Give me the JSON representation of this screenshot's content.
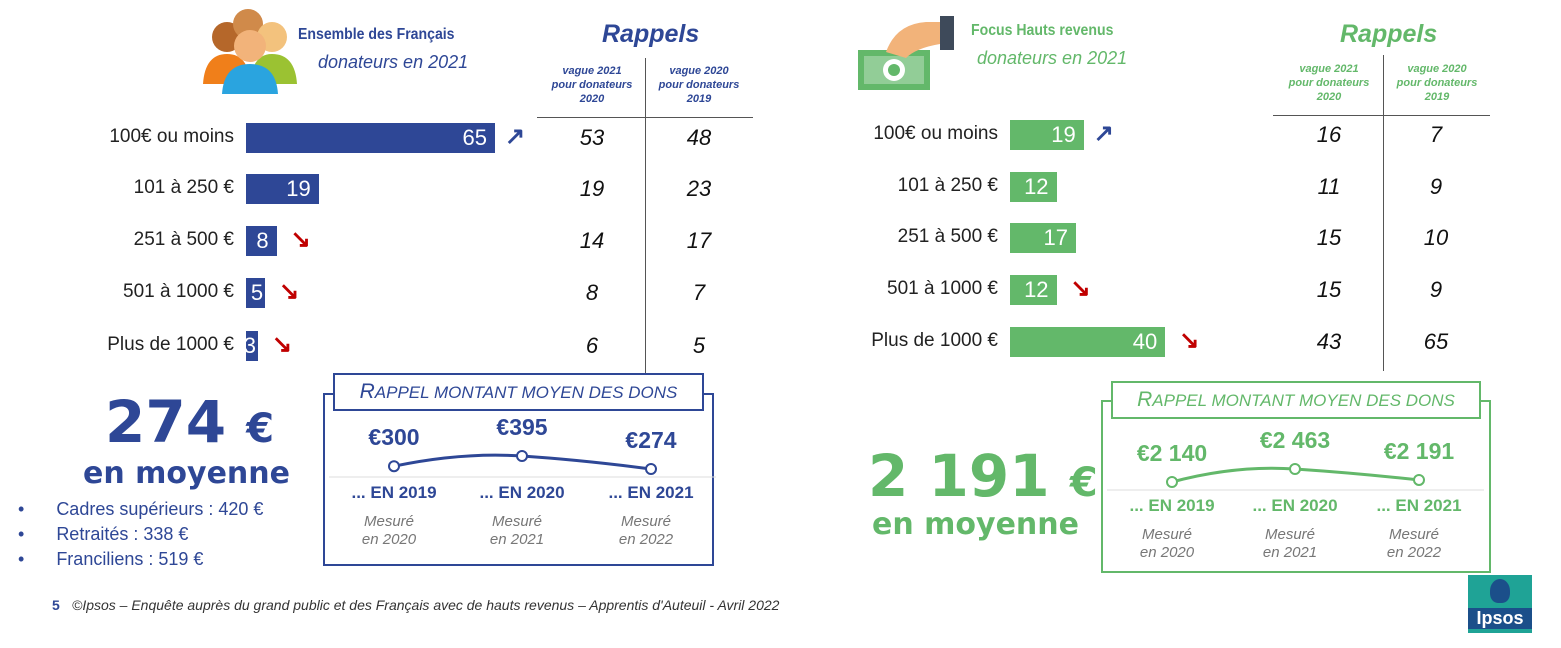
{
  "left": {
    "title": "Ensemble des Français",
    "subtitle": "donateurs en 2021",
    "rappels": "Rappels",
    "col_headers": [
      "vague 2021\npour donateurs\n2020",
      "vague 2020\npour donateurs\n2019"
    ],
    "rows": [
      {
        "label": "100€ ou moins",
        "value": 65,
        "trend": "up",
        "rappel_2021": "53",
        "rappel_2020": "48"
      },
      {
        "label": "101 à 250 €",
        "value": 19,
        "trend": "",
        "rappel_2021": "19",
        "rappel_2020": "23"
      },
      {
        "label": "251 à 500 €",
        "value": 8,
        "trend": "down",
        "rappel_2021": "14",
        "rappel_2020": "17"
      },
      {
        "label": "501 à 1000 €",
        "value": 5,
        "trend": "down",
        "rappel_2021": "8",
        "rappel_2020": "7"
      },
      {
        "label": "Plus de 1000 €",
        "value": 3,
        "trend": "down",
        "rappel_2021": "6",
        "rappel_2020": "5"
      }
    ],
    "average": "274",
    "currency": "€",
    "average_label": "en moyenne",
    "bullets": [
      "Cadres supérieurs : 420 €",
      "Retraités : 338 €",
      "Franciliens : 519 €"
    ],
    "box": {
      "title_first": "R",
      "title_rest": "APPEL MONTANT MOYEN DES DONS",
      "points": [
        {
          "label": "€300",
          "value": 300,
          "year": "... EN 2019",
          "measured": "Mesuré\nen 2020"
        },
        {
          "label": "€395",
          "value": 395,
          "year": "... EN 2020",
          "measured": "Mesuré\nen 2021"
        },
        {
          "label": "€274",
          "value": 274,
          "year": "... EN 2021",
          "measured": "Mesuré\nen 2022"
        }
      ]
    }
  },
  "right": {
    "title": "Focus Hauts revenus",
    "subtitle": "donateurs en 2021",
    "rappels": "Rappels",
    "col_headers": [
      "vague 2021\npour donateurs\n2020",
      "vague 2020\npour donateurs\n2019"
    ],
    "rows": [
      {
        "label": "100€ ou moins",
        "value": 19,
        "trend": "up",
        "rappel_2021": "16",
        "rappel_2020": "7"
      },
      {
        "label": "101 à 250 €",
        "value": 12,
        "trend": "",
        "rappel_2021": "11",
        "rappel_2020": "9"
      },
      {
        "label": "251 à 500 €",
        "value": 17,
        "trend": "",
        "rappel_2021": "15",
        "rappel_2020": "10"
      },
      {
        "label": "501 à 1000 €",
        "value": 12,
        "trend": "down",
        "rappel_2021": "15",
        "rappel_2020": "9"
      },
      {
        "label": "Plus de 1000 €",
        "value": 40,
        "trend": "down",
        "rappel_2021": "43",
        "rappel_2020": "65"
      }
    ],
    "average": "2 191",
    "currency": "€",
    "average_label": "en moyenne",
    "box": {
      "title_first": "R",
      "title_rest": "APPEL MONTANT MOYEN DES DONS",
      "points": [
        {
          "label": "€2 140",
          "value": 2140,
          "year": "... EN 2019",
          "measured": "Mesuré\nen 2020"
        },
        {
          "label": "€2 463",
          "value": 2463,
          "year": "... EN 2020",
          "measured": "Mesuré\nen 2021"
        },
        {
          "label": "€2 191",
          "value": 2191,
          "year": "... EN 2021",
          "measured": "Mesuré\nen 2022"
        }
      ]
    }
  },
  "footer": {
    "page": "5",
    "source": "©Ipsos – Enquête auprès du grand public et des Français avec de hauts revenus – Apprentis d'Auteuil - Avril 2022"
  },
  "logo": "Ipsos",
  "colors": {
    "blue": "#2E4796",
    "green": "#63B86A",
    "down": "#C00000"
  },
  "chart_data": [
    {
      "type": "bar",
      "title": "Ensemble des Français – donateurs en 2021",
      "categories": [
        "100€ ou moins",
        "101 à 250 €",
        "251 à 500 €",
        "501 à 1000 €",
        "Plus de 1000 €"
      ],
      "values": [
        65,
        19,
        8,
        5,
        3
      ]
    },
    {
      "type": "bar",
      "title": "Focus Hauts revenus – donateurs en 2021",
      "categories": [
        "100€ ou moins",
        "101 à 250 €",
        "251 à 500 €",
        "501 à 1000 €",
        "Plus de 1000 €"
      ],
      "values": [
        19,
        12,
        17,
        12,
        40
      ]
    },
    {
      "type": "line",
      "title": "Rappel montant moyen des dons (Ensemble)",
      "x": [
        "2019",
        "2020",
        "2021"
      ],
      "values": [
        300,
        395,
        274
      ]
    },
    {
      "type": "line",
      "title": "Rappel montant moyen des dons (Hauts revenus)",
      "x": [
        "2019",
        "2020",
        "2021"
      ],
      "values": [
        2140,
        2463,
        2191
      ]
    }
  ]
}
